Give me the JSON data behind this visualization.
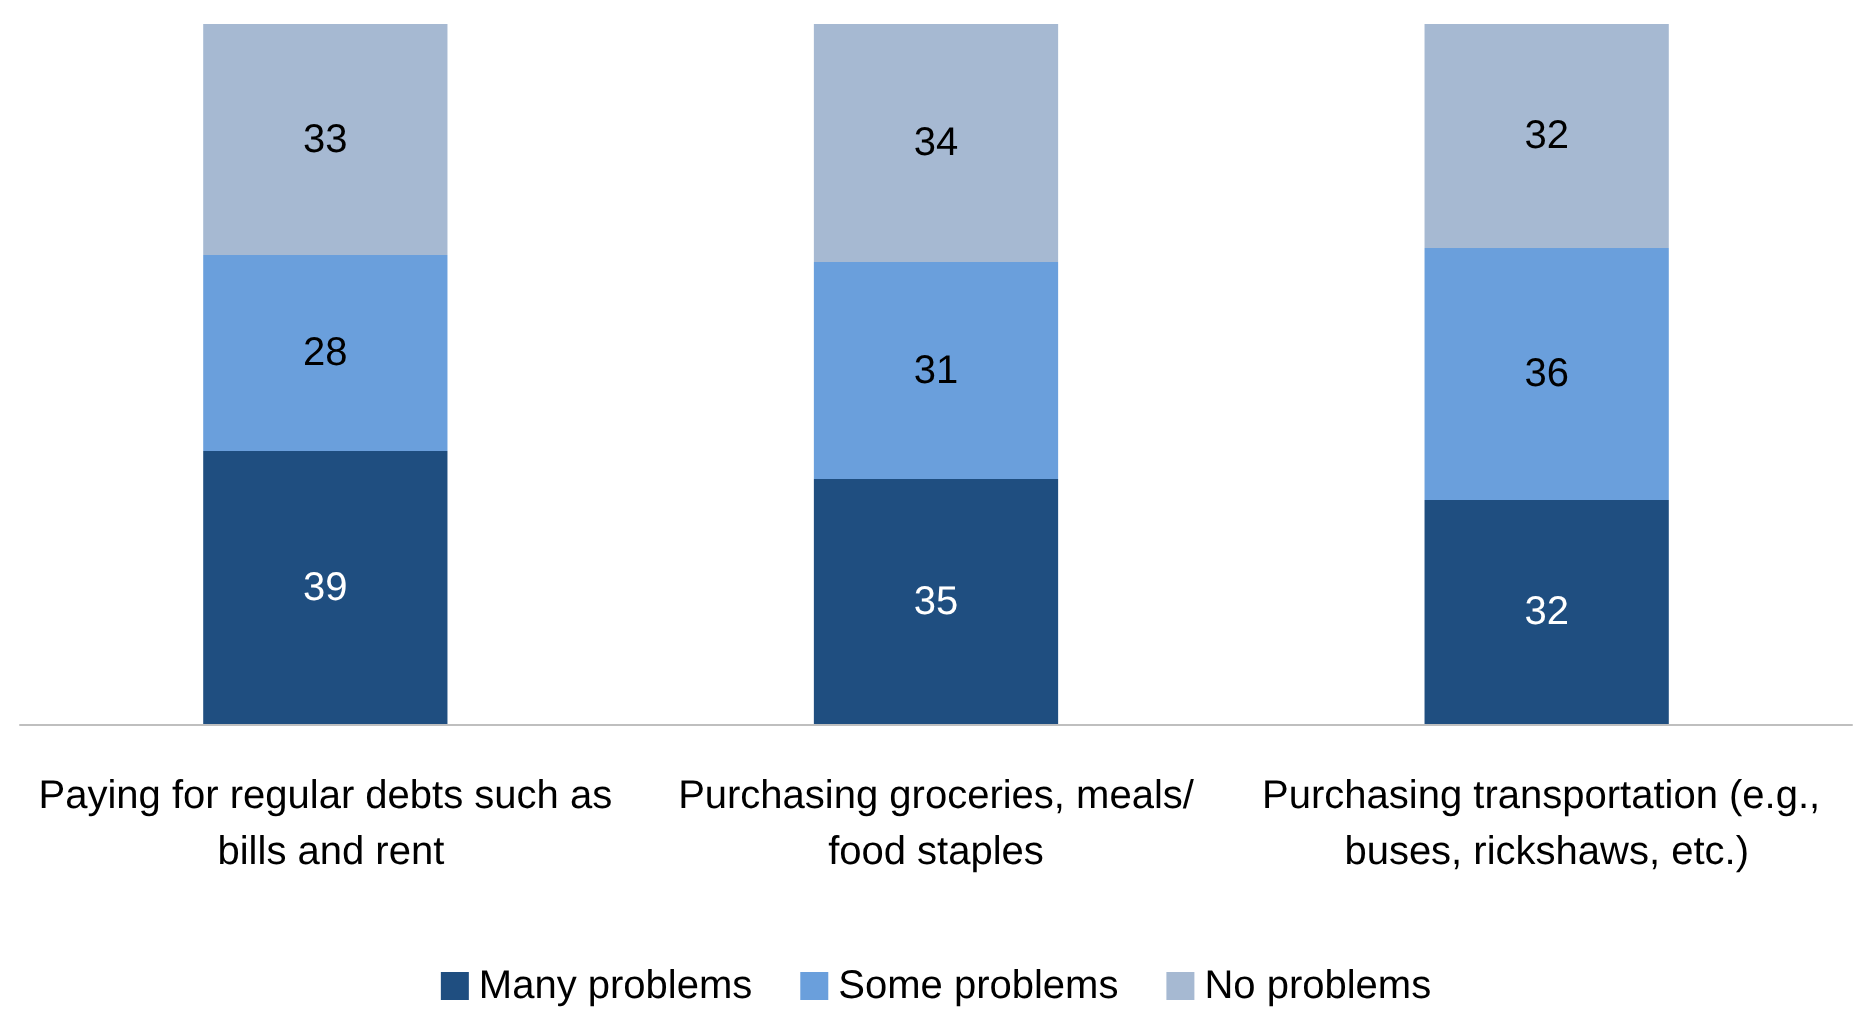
{
  "chart_data": {
    "type": "bar",
    "stacked": true,
    "data_labels": true,
    "legend": "bottom",
    "categories": [
      "Paying for regular debts such as bills and rent",
      "Purchasing groceries, meals/food staples",
      "Purchasing transportation (e.g., buses, rickshaws, etc.)"
    ],
    "series": [
      {
        "name": "Many problems",
        "color": "#1f4e80",
        "values": [
          39,
          35,
          32
        ]
      },
      {
        "name": "Some problems",
        "color": "#6a9fdc",
        "values": [
          28,
          31,
          36
        ]
      },
      {
        "name": "No problems",
        "color": "#a6b9d2",
        "values": [
          33,
          34,
          32
        ]
      }
    ]
  }
}
